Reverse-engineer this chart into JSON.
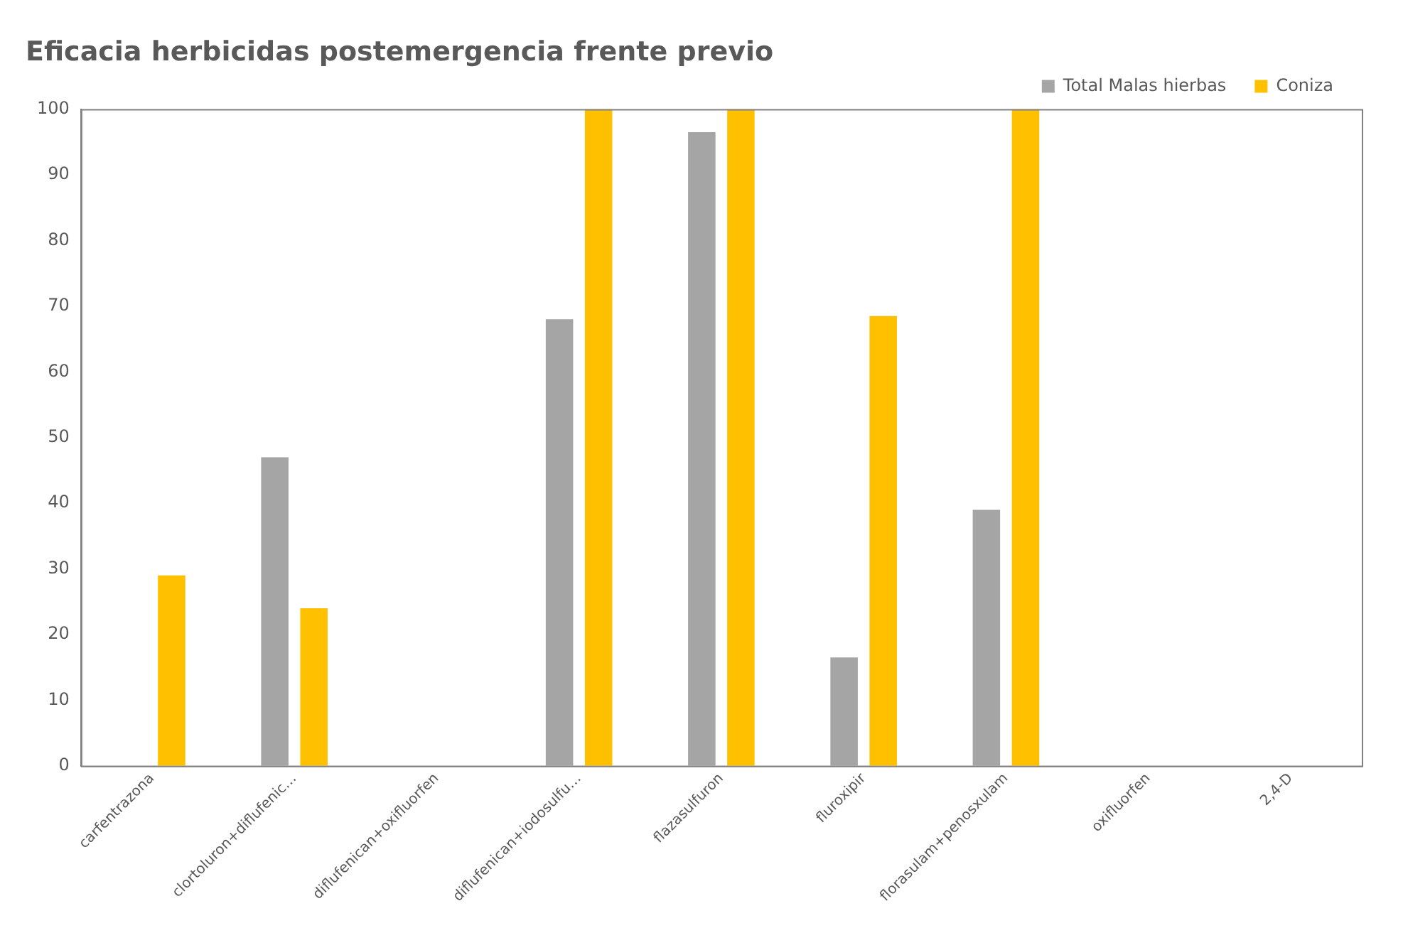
{
  "chart_data": {
    "type": "bar",
    "title": "Eficacia herbicidas postemergencia frente previo",
    "categories": [
      "carfentrazona",
      "clortoluron+diflufenic…",
      "diflufenican+oxifluorfen",
      "diflufenican+iodosulfu…",
      "flazasulfuron",
      "fluroxipir",
      "florasulam+penosxulam",
      "oxifluorfen",
      "2,4-D"
    ],
    "series": [
      {
        "name": "Total Malas hierbas",
        "color": "#a5a5a5",
        "values": [
          0,
          47,
          0,
          68,
          96.5,
          16.5,
          39,
          0,
          0
        ]
      },
      {
        "name": "Coniza",
        "color": "#ffc000",
        "values": [
          29,
          24,
          0,
          100,
          100,
          68.5,
          100,
          0,
          0
        ]
      }
    ],
    "ylim": [
      0,
      100
    ],
    "yticks": [
      0,
      10,
      20,
      30,
      40,
      50,
      60,
      70,
      80,
      90,
      100
    ],
    "grid": false,
    "legend": "top right"
  }
}
